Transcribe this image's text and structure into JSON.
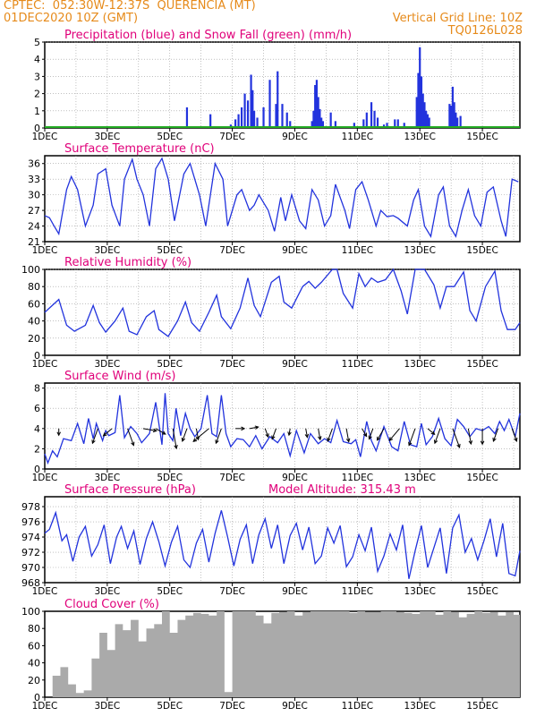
{
  "header": {
    "line1": "CPTEC:  052:30W-12:37S  QUERENCIA (MT)",
    "line2": "01DEC2020 10Z (GMT)",
    "grid_note": "Vertical Grid Line: 10Z",
    "code": "TQ0126L028"
  },
  "colors": {
    "accent": "#e68a1a",
    "title": "#e0007a",
    "line": "#2233dd",
    "snow": "#22aa22",
    "cloud": "#aaaaaa",
    "grid": "#9a9a9a"
  },
  "x_axis": {
    "tick_labels": [
      "1DEC",
      "3DEC",
      "5DEC",
      "7DEC",
      "9DEC",
      "11DEC",
      "13DEC",
      "15DEC"
    ],
    "tick_days": [
      1,
      3,
      5,
      7,
      9,
      11,
      13,
      15
    ],
    "range_days": [
      1,
      16.2
    ]
  },
  "chart_data": [
    {
      "type": "bar",
      "id": "precip",
      "title": "Precipitation (blue) and Snow Fall (green) (mm/h)",
      "ylim": [
        0,
        5
      ],
      "yticks": [
        0,
        1,
        2,
        3,
        4,
        5
      ],
      "grid": true,
      "series": [
        {
          "name": "Precipitation",
          "color": "#2233dd",
          "x": [
            5.55,
            6.3,
            6.95,
            7.1,
            7.2,
            7.3,
            7.4,
            7.5,
            7.6,
            7.65,
            7.7,
            7.8,
            8.0,
            8.2,
            8.4,
            8.45,
            8.6,
            8.75,
            8.85,
            9.55,
            9.6,
            9.65,
            9.7,
            9.75,
            9.8,
            9.85,
            9.9,
            10.15,
            10.3,
            10.9,
            11.2,
            11.3,
            11.45,
            11.55,
            11.65,
            11.85,
            11.95,
            12.2,
            12.3,
            12.5,
            12.9,
            12.95,
            13.0,
            13.05,
            13.1,
            13.15,
            13.2,
            13.25,
            13.3,
            13.95,
            14.0,
            14.05,
            14.1,
            14.15,
            14.2,
            14.3
          ],
          "values": [
            1.2,
            0.8,
            0.2,
            0.5,
            0.8,
            1.2,
            2.0,
            1.6,
            3.1,
            2.2,
            1.0,
            0.6,
            1.2,
            2.8,
            1.4,
            3.3,
            1.4,
            0.9,
            0.4,
            0.4,
            1.0,
            2.5,
            2.8,
            1.8,
            1.1,
            0.6,
            0.4,
            0.9,
            0.4,
            0.3,
            0.5,
            0.9,
            1.5,
            1.0,
            0.6,
            0.2,
            0.3,
            0.5,
            0.5,
            0.3,
            1.8,
            3.2,
            4.7,
            3.0,
            2.0,
            1.5,
            1.0,
            0.8,
            0.6,
            1.4,
            1.3,
            2.4,
            1.5,
            0.9,
            0.6,
            0.7
          ]
        },
        {
          "name": "Snow Fall",
          "color": "#22aa22",
          "values": [
            0
          ]
        }
      ]
    },
    {
      "type": "line",
      "id": "temp",
      "title": "Surface Temperature (nC)",
      "ylim": [
        21,
        37.5
      ],
      "yticks": [
        21,
        24,
        27,
        30,
        33,
        36
      ],
      "grid": true,
      "series": [
        {
          "name": "Surface Temperature",
          "x": [
            1.0,
            1.15,
            1.3,
            1.45,
            1.7,
            1.85,
            2.05,
            2.3,
            2.55,
            2.7,
            2.95,
            3.15,
            3.4,
            3.55,
            3.8,
            3.95,
            4.15,
            4.35,
            4.55,
            4.75,
            4.95,
            5.15,
            5.45,
            5.65,
            5.95,
            6.15,
            6.45,
            6.7,
            6.85,
            7.15,
            7.3,
            7.55,
            7.7,
            7.85,
            8.15,
            8.35,
            8.55,
            8.7,
            8.9,
            9.15,
            9.35,
            9.55,
            9.75,
            9.95,
            10.15,
            10.3,
            10.6,
            10.75,
            10.95,
            11.15,
            11.35,
            11.6,
            11.75,
            11.95,
            12.15,
            12.3,
            12.6,
            12.8,
            12.95,
            13.15,
            13.35,
            13.6,
            13.75,
            13.95,
            14.15,
            14.35,
            14.55,
            14.75,
            14.95,
            15.15,
            15.35,
            15.6,
            15.75,
            15.95,
            16.15
          ],
          "values": [
            26,
            25.6,
            24,
            22.5,
            31,
            33.5,
            31,
            24,
            28,
            34,
            35,
            28,
            24,
            33,
            36.8,
            33,
            30,
            24,
            35,
            37,
            33,
            25,
            34,
            36,
            30,
            24,
            36,
            33,
            24,
            30,
            31,
            27,
            28,
            30,
            27,
            23,
            29.5,
            25,
            30,
            25,
            23.5,
            31,
            29,
            24,
            26,
            32,
            27,
            23.5,
            31,
            32.5,
            29,
            24,
            27,
            25.8,
            26,
            25.5,
            24,
            29,
            31,
            24,
            22,
            30,
            31.5,
            24,
            22,
            27,
            31,
            26,
            24,
            30.5,
            31.5,
            25,
            22,
            33,
            32.5
          ]
        }
      ]
    },
    {
      "type": "line",
      "id": "rh",
      "title": "Relative Humidity (%)",
      "ylim": [
        0,
        100
      ],
      "yticks": [
        0,
        20,
        40,
        60,
        80,
        100
      ],
      "grid": true,
      "series": [
        {
          "name": "Relative Humidity",
          "x": [
            1.0,
            1.3,
            1.45,
            1.7,
            1.95,
            2.3,
            2.55,
            2.75,
            2.95,
            3.25,
            3.5,
            3.7,
            3.95,
            4.25,
            4.5,
            4.65,
            4.95,
            5.25,
            5.5,
            5.7,
            5.95,
            6.25,
            6.5,
            6.65,
            6.95,
            7.25,
            7.5,
            7.7,
            7.9,
            8.25,
            8.5,
            8.65,
            8.9,
            9.25,
            9.45,
            9.65,
            9.85,
            10.2,
            10.35,
            10.55,
            10.85,
            11.05,
            11.25,
            11.45,
            11.65,
            11.9,
            12.15,
            12.4,
            12.6,
            12.85,
            13.15,
            13.45,
            13.65,
            13.85,
            14.1,
            14.4,
            14.6,
            14.8,
            15.1,
            15.4,
            15.6,
            15.8,
            16.05,
            16.2
          ],
          "values": [
            50,
            60,
            65,
            35,
            28,
            35,
            58,
            38,
            27,
            40,
            55,
            28,
            24,
            45,
            52,
            30,
            22,
            40,
            62,
            38,
            28,
            50,
            70,
            45,
            31,
            55,
            90,
            58,
            45,
            85,
            92,
            62,
            55,
            80,
            86,
            78,
            85,
            100,
            100,
            72,
            55,
            95,
            80,
            90,
            85,
            88,
            100,
            75,
            48,
            100,
            100,
            82,
            55,
            80,
            80,
            97,
            52,
            40,
            80,
            98,
            52,
            30,
            30,
            38
          ]
        }
      ]
    },
    {
      "type": "line",
      "id": "wind",
      "title": "Surface Wind (m/s)",
      "ylim": [
        0,
        8.5
      ],
      "yticks": [
        0,
        2,
        4,
        6,
        8
      ],
      "grid": true,
      "series": [
        {
          "name": "Surface Wind",
          "x": [
            1.0,
            1.1,
            1.25,
            1.4,
            1.6,
            1.85,
            2.05,
            2.25,
            2.4,
            2.55,
            2.65,
            2.85,
            2.95,
            3.05,
            3.25,
            3.4,
            3.55,
            3.75,
            3.95,
            4.1,
            4.35,
            4.55,
            4.75,
            4.85,
            4.95,
            5.1,
            5.2,
            5.35,
            5.5,
            5.65,
            5.8,
            6.0,
            6.2,
            6.35,
            6.5,
            6.65,
            6.8,
            6.95,
            7.15,
            7.35,
            7.55,
            7.75,
            7.95,
            8.2,
            8.45,
            8.65,
            8.85,
            9.05,
            9.3,
            9.5,
            9.75,
            9.95,
            10.15,
            10.35,
            10.55,
            10.8,
            10.95,
            11.1,
            11.3,
            11.45,
            11.6,
            11.85,
            12.1,
            12.3,
            12.5,
            12.7,
            12.9,
            13.05,
            13.2,
            13.4,
            13.6,
            13.8,
            14.0,
            14.2,
            14.4,
            14.6,
            14.8,
            15.0,
            15.2,
            15.4,
            15.55,
            15.7,
            15.85,
            16.05,
            16.2
          ],
          "values": [
            1.5,
            0.6,
            1.8,
            1.2,
            3.0,
            2.8,
            4.5,
            2.5,
            5.0,
            3.0,
            4.5,
            2.8,
            3.8,
            3.3,
            3.6,
            7.3,
            3.1,
            4.2,
            3.5,
            2.6,
            3.5,
            6.6,
            2.4,
            7.5,
            3.5,
            2.8,
            6.0,
            3.3,
            5.5,
            4.0,
            3.2,
            4.0,
            7.3,
            3.5,
            3.2,
            7.3,
            3.5,
            2.2,
            3.0,
            2.9,
            2.2,
            3.3,
            2.0,
            3.2,
            2.6,
            3.5,
            1.3,
            3.8,
            1.6,
            3.5,
            2.5,
            3.0,
            2.6,
            4.8,
            2.7,
            2.5,
            2.9,
            1.2,
            4.7,
            2.8,
            1.8,
            4.2,
            2.2,
            1.8,
            4.7,
            2.4,
            2.2,
            4.5,
            2.4,
            3.2,
            5.0,
            3.0,
            2.3,
            4.9,
            4.2,
            3.2,
            4.0,
            3.8,
            4.2,
            3.5,
            4.7,
            3.8,
            4.9,
            3.2,
            5.5
          ]
        }
      ],
      "vectors": {
        "x": [
          1.45,
          2.7,
          3.15,
          3.65,
          4.15,
          4.55,
          5.1,
          5.55,
          5.85,
          6.25,
          6.65,
          7.1,
          7.55,
          8.05,
          8.4,
          8.85,
          9.35,
          9.75,
          10.2,
          10.65,
          11.15,
          11.5,
          11.85,
          12.35,
          12.85,
          13.25,
          13.65,
          14.05,
          14.55,
          15.0,
          15.5,
          15.95
        ],
        "dir_deg": [
          180,
          200,
          230,
          160,
          100,
          120,
          170,
          200,
          170,
          230,
          200,
          90,
          80,
          160,
          200,
          190,
          170,
          170,
          200,
          170,
          150,
          200,
          210,
          220,
          200,
          130,
          200,
          160,
          170,
          180,
          200,
          160
        ],
        "spd": [
          1.5,
          3.5,
          2.5,
          4.0,
          3.0,
          2.5,
          4.5,
          3.0,
          2.5,
          4.5,
          3.5,
          2.0,
          2.0,
          2.0,
          2.5,
          1.5,
          2.0,
          2.5,
          3.0,
          3.0,
          2.0,
          2.5,
          3.0,
          3.5,
          4.0,
          2.0,
          3.5,
          4.5,
          3.5,
          3.5,
          3.0,
          3.0
        ]
      }
    },
    {
      "type": "line",
      "id": "pres",
      "title": "Surface Pressure (hPa)",
      "annotation": "Model Altitude: 315.43 m",
      "ylim": [
        968,
        979.3
      ],
      "yticks": [
        968,
        970,
        972,
        974,
        976,
        978
      ],
      "grid": true,
      "series": [
        {
          "name": "Surface Pressure",
          "x": [
            1.0,
            1.15,
            1.35,
            1.55,
            1.7,
            1.9,
            2.1,
            2.3,
            2.5,
            2.7,
            2.9,
            3.1,
            3.3,
            3.45,
            3.65,
            3.85,
            4.05,
            4.25,
            4.45,
            4.65,
            4.85,
            5.05,
            5.25,
            5.45,
            5.65,
            5.85,
            6.05,
            6.25,
            6.45,
            6.65,
            6.85,
            7.05,
            7.25,
            7.45,
            7.65,
            7.85,
            8.05,
            8.25,
            8.45,
            8.65,
            8.85,
            9.05,
            9.25,
            9.45,
            9.65,
            9.85,
            10.05,
            10.25,
            10.45,
            10.65,
            10.85,
            11.05,
            11.25,
            11.45,
            11.65,
            11.85,
            12.05,
            12.25,
            12.45,
            12.65,
            12.85,
            13.05,
            13.25,
            13.45,
            13.65,
            13.85,
            14.05,
            14.25,
            14.45,
            14.65,
            14.85,
            15.05,
            15.25,
            15.45,
            15.65,
            15.85,
            16.05,
            16.2
          ],
          "values": [
            974.5,
            975,
            977.2,
            973.5,
            974.3,
            970.8,
            974,
            975.4,
            971.5,
            973,
            975.6,
            970.5,
            974,
            975.4,
            972.5,
            974.8,
            970.4,
            973.8,
            976,
            973.4,
            970.2,
            973.3,
            975.4,
            971,
            970,
            973.2,
            975,
            970.7,
            974.5,
            977.5,
            974,
            970.2,
            973.7,
            975.6,
            970.5,
            974.3,
            976.4,
            972.5,
            975.6,
            970.5,
            974.2,
            975.8,
            972.3,
            975.3,
            970.5,
            971.5,
            975.2,
            973.2,
            975.5,
            970.1,
            971.4,
            974.3,
            972.2,
            975.3,
            969.5,
            971.5,
            974.4,
            972.3,
            975.6,
            968.5,
            972.2,
            975.5,
            970,
            972.6,
            975.2,
            969.2,
            975.2,
            976.9,
            972,
            973.8,
            971,
            973.5,
            976.4,
            971.4,
            975.8,
            969.2,
            968.9,
            972.2
          ]
        }
      ]
    },
    {
      "type": "bar",
      "id": "cloud",
      "title": "Cloud Cover (%)",
      "ylim": [
        0,
        100
      ],
      "yticks": [
        0,
        20,
        40,
        60,
        80,
        100
      ],
      "grid": false,
      "series": [
        {
          "name": "Cloud Cover",
          "x": [
            1.0,
            1.25,
            1.5,
            1.75,
            2.0,
            2.25,
            2.5,
            2.75,
            3.0,
            3.25,
            3.5,
            3.75,
            4.0,
            4.25,
            4.5,
            4.75,
            5.0,
            5.25,
            5.5,
            5.75,
            6.0,
            6.25,
            6.5,
            6.75,
            7.0,
            7.25,
            7.5,
            7.75,
            8.0,
            8.25,
            8.5,
            8.75,
            9.0,
            9.25,
            9.5,
            9.75,
            10.0,
            10.25,
            10.5,
            10.75,
            11.0,
            11.25,
            11.5,
            11.75,
            12.0,
            12.25,
            12.5,
            12.75,
            13.0,
            13.25,
            13.5,
            13.75,
            14.0,
            14.25,
            14.5,
            14.75,
            15.0,
            15.25,
            15.5,
            15.75,
            16.0,
            16.2
          ],
          "values": [
            0,
            25,
            35,
            15,
            5,
            8,
            45,
            75,
            55,
            85,
            78,
            90,
            65,
            80,
            85,
            100,
            75,
            90,
            95,
            98,
            97,
            95,
            100,
            6,
            100,
            100,
            100,
            95,
            86,
            98,
            99,
            100,
            95,
            99,
            100,
            100,
            100,
            100,
            100,
            98,
            100,
            99,
            99,
            100,
            100,
            99,
            98,
            97,
            100,
            100,
            96,
            100,
            99,
            93,
            97,
            100,
            98,
            99,
            95,
            99,
            96,
            90
          ]
        }
      ]
    }
  ]
}
